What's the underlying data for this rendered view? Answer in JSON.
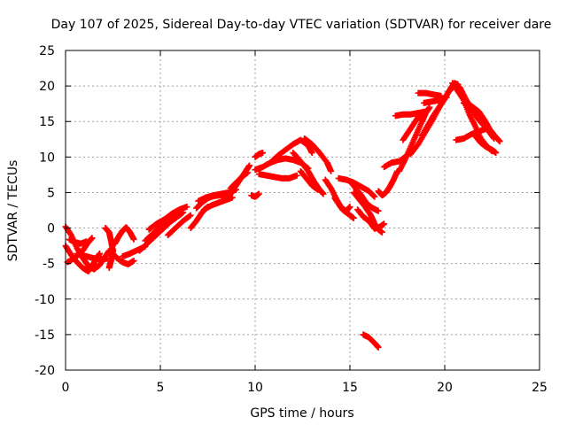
{
  "chart_data": {
    "type": "scatter",
    "title": "Day 107 of 2025, Sidereal Day-to-day VTEC variation (SDTVAR) for receiver dare",
    "xlabel": "GPS time / hours",
    "ylabel": "SDTVAR / TECUs",
    "xlim": [
      0,
      25
    ],
    "ylim": [
      -20,
      25
    ],
    "xticks": [
      0,
      5,
      10,
      15,
      20,
      25
    ],
    "yticks": [
      -20,
      -15,
      -10,
      -5,
      0,
      5,
      10,
      15,
      20,
      25
    ],
    "grid": true,
    "legend": "none",
    "marker": "+",
    "series": [
      {
        "name": "SDTVAR",
        "color": "#ff0000",
        "tracks": [
          [
            [
              0.0,
              0.2
            ],
            [
              0.3,
              -1.0
            ],
            [
              0.6,
              -2.8
            ],
            [
              0.9,
              -4.2
            ],
            [
              1.2,
              -5.3
            ],
            [
              1.5,
              -5.8
            ],
            [
              1.8,
              -5.2
            ],
            [
              2.1,
              -4.0
            ],
            [
              2.3,
              -3.2
            ]
          ],
          [
            [
              0.0,
              -2.5
            ],
            [
              0.3,
              -3.8
            ],
            [
              0.6,
              -4.8
            ],
            [
              0.9,
              -5.6
            ],
            [
              1.2,
              -6.1
            ],
            [
              1.4,
              -5.4
            ],
            [
              1.6,
              -4.4
            ],
            [
              1.8,
              -3.6
            ]
          ],
          [
            [
              0.1,
              -4.8
            ],
            [
              0.5,
              -4.2
            ],
            [
              0.9,
              -3.2
            ],
            [
              1.2,
              -2.0
            ],
            [
              1.4,
              -1.4
            ]
          ],
          [
            [
              0.2,
              -1.6
            ],
            [
              0.5,
              -2.0
            ],
            [
              0.8,
              -2.2
            ],
            [
              1.1,
              -1.9
            ]
          ],
          [
            [
              0.6,
              -3.6
            ],
            [
              1.0,
              -3.9
            ],
            [
              1.4,
              -4.2
            ],
            [
              1.8,
              -4.4
            ],
            [
              2.2,
              -4.3
            ]
          ],
          [
            [
              2.1,
              0.0
            ],
            [
              2.3,
              -0.6
            ],
            [
              2.4,
              -1.8
            ],
            [
              2.5,
              -3.2
            ],
            [
              2.4,
              -4.6
            ],
            [
              2.3,
              -5.6
            ]
          ],
          [
            [
              2.5,
              -3.6
            ],
            [
              2.7,
              -4.2
            ],
            [
              3.0,
              -4.8
            ],
            [
              3.3,
              -5.1
            ],
            [
              3.6,
              -4.6
            ]
          ],
          [
            [
              2.6,
              -2.2
            ],
            [
              2.8,
              -1.2
            ],
            [
              3.0,
              -0.4
            ],
            [
              3.2,
              0.1
            ],
            [
              3.4,
              -0.6
            ],
            [
              3.6,
              -1.6
            ]
          ],
          [
            [
              3.0,
              -4.0
            ],
            [
              3.4,
              -3.6
            ],
            [
              3.8,
              -3.1
            ],
            [
              4.2,
              -2.6
            ]
          ],
          [
            [
              3.9,
              -3.2
            ],
            [
              4.3,
              -2.2
            ],
            [
              4.7,
              -1.2
            ],
            [
              5.1,
              -0.2
            ],
            [
              5.5,
              0.8
            ],
            [
              5.9,
              1.6
            ],
            [
              6.2,
              2.2
            ]
          ],
          [
            [
              4.2,
              -1.8
            ],
            [
              4.6,
              -0.8
            ],
            [
              5.0,
              0.2
            ],
            [
              5.4,
              0.9
            ],
            [
              5.8,
              1.6
            ]
          ],
          [
            [
              4.4,
              -0.2
            ],
            [
              4.8,
              0.6
            ],
            [
              5.2,
              1.2
            ],
            [
              5.6,
              2.0
            ],
            [
              6.0,
              2.6
            ],
            [
              6.4,
              3.0
            ]
          ],
          [
            [
              5.4,
              -1.0
            ],
            [
              5.8,
              0.0
            ],
            [
              6.2,
              1.0
            ],
            [
              6.6,
              1.8
            ]
          ],
          [
            [
              6.6,
              0.0
            ],
            [
              6.9,
              1.0
            ],
            [
              7.2,
              2.2
            ],
            [
              7.5,
              3.0
            ]
          ],
          [
            [
              6.9,
              2.8
            ],
            [
              7.2,
              3.6
            ],
            [
              7.5,
              4.2
            ],
            [
              7.8,
              4.5
            ],
            [
              8.1,
              4.6
            ],
            [
              8.4,
              4.7
            ],
            [
              8.7,
              4.9
            ]
          ],
          [
            [
              7.0,
              3.8
            ],
            [
              7.4,
              4.3
            ],
            [
              7.8,
              4.6
            ],
            [
              8.2,
              4.8
            ],
            [
              8.6,
              5.0
            ],
            [
              9.0,
              5.4
            ]
          ],
          [
            [
              7.3,
              2.6
            ],
            [
              7.7,
              3.2
            ],
            [
              8.1,
              3.6
            ],
            [
              8.5,
              4.0
            ],
            [
              8.8,
              4.3
            ]
          ],
          [
            [
              8.6,
              4.4
            ],
            [
              8.9,
              5.6
            ],
            [
              9.2,
              6.8
            ],
            [
              9.5,
              8.0
            ],
            [
              9.7,
              8.8
            ]
          ],
          [
            [
              8.7,
              5.6
            ],
            [
              9.0,
              6.4
            ],
            [
              9.3,
              7.2
            ],
            [
              9.6,
              7.8
            ]
          ],
          [
            [
              9.8,
              4.6
            ],
            [
              10.0,
              4.4
            ],
            [
              10.2,
              4.8
            ]
          ],
          [
            [
              10.0,
              10.0
            ],
            [
              10.2,
              10.4
            ],
            [
              10.4,
              10.6
            ]
          ],
          [
            [
              10.0,
              8.2
            ],
            [
              10.4,
              8.6
            ],
            [
              10.8,
              9.2
            ],
            [
              11.2,
              10.2
            ],
            [
              11.6,
              11.0
            ],
            [
              12.0,
              11.8
            ],
            [
              12.4,
              12.4
            ],
            [
              12.8,
              11.6
            ],
            [
              13.0,
              10.6
            ]
          ],
          [
            [
              10.2,
              7.6
            ],
            [
              10.6,
              7.4
            ],
            [
              11.0,
              7.2
            ],
            [
              11.4,
              7.0
            ],
            [
              11.8,
              7.0
            ],
            [
              12.2,
              7.4
            ]
          ],
          [
            [
              10.8,
              9.2
            ],
            [
              11.2,
              9.6
            ],
            [
              11.6,
              9.8
            ],
            [
              12.0,
              9.6
            ],
            [
              12.4,
              9.2
            ],
            [
              12.8,
              8.4
            ]
          ],
          [
            [
              12.0,
              10.6
            ],
            [
              12.4,
              9.4
            ],
            [
              12.8,
              8.0
            ],
            [
              13.1,
              6.6
            ],
            [
              13.4,
              5.4
            ],
            [
              13.6,
              4.8
            ]
          ],
          [
            [
              12.6,
              12.6
            ],
            [
              13.0,
              11.8
            ],
            [
              13.4,
              10.6
            ],
            [
              13.8,
              9.2
            ],
            [
              14.0,
              8.0
            ]
          ],
          [
            [
              12.4,
              8.0
            ],
            [
              12.7,
              7.0
            ],
            [
              13.0,
              6.0
            ],
            [
              13.3,
              5.4
            ]
          ],
          [
            [
              13.7,
              6.8
            ],
            [
              14.0,
              5.6
            ],
            [
              14.3,
              4.0
            ],
            [
              14.6,
              2.6
            ],
            [
              14.9,
              2.0
            ],
            [
              15.2,
              1.4
            ]
          ],
          [
            [
              14.2,
              4.2
            ],
            [
              14.5,
              3.0
            ],
            [
              14.8,
              2.4
            ],
            [
              15.0,
              3.0
            ]
          ],
          [
            [
              14.4,
              7.0
            ],
            [
              14.8,
              6.8
            ],
            [
              15.2,
              6.4
            ],
            [
              15.6,
              5.8
            ],
            [
              16.0,
              5.2
            ],
            [
              16.3,
              4.4
            ]
          ],
          [
            [
              15.0,
              6.6
            ],
            [
              15.3,
              5.6
            ],
            [
              15.6,
              4.6
            ],
            [
              15.9,
              3.4
            ],
            [
              16.2,
              2.8
            ],
            [
              16.5,
              2.4
            ]
          ],
          [
            [
              15.2,
              5.0
            ],
            [
              15.5,
              4.0
            ],
            [
              15.8,
              3.0
            ],
            [
              16.1,
              1.8
            ],
            [
              16.3,
              0.6
            ],
            [
              16.5,
              -0.2
            ],
            [
              16.7,
              -0.6
            ]
          ],
          [
            [
              15.4,
              2.6
            ],
            [
              15.7,
              1.6
            ],
            [
              16.0,
              1.0
            ],
            [
              16.3,
              -0.1
            ],
            [
              16.6,
              0.2
            ],
            [
              16.8,
              0.6
            ]
          ],
          [
            [
              15.7,
              -15.0
            ],
            [
              16.0,
              -15.4
            ],
            [
              16.3,
              -16.2
            ],
            [
              16.5,
              -16.8
            ]
          ],
          [
            [
              16.5,
              5.2
            ],
            [
              16.7,
              4.6
            ],
            [
              16.9,
              5.0
            ],
            [
              17.1,
              5.8
            ],
            [
              17.3,
              6.8
            ],
            [
              17.5,
              8.0
            ]
          ],
          [
            [
              16.8,
              8.6
            ],
            [
              17.2,
              9.2
            ],
            [
              17.6,
              9.4
            ],
            [
              18.0,
              10.2
            ],
            [
              18.3,
              11.0
            ]
          ],
          [
            [
              17.6,
              8.0
            ],
            [
              17.9,
              9.6
            ],
            [
              18.2,
              11.4
            ],
            [
              18.5,
              13.2
            ],
            [
              18.8,
              15.0
            ],
            [
              19.0,
              16.2
            ],
            [
              19.2,
              17.0
            ]
          ],
          [
            [
              17.8,
              12.4
            ],
            [
              18.1,
              13.6
            ],
            [
              18.4,
              14.8
            ],
            [
              18.7,
              16.0
            ]
          ],
          [
            [
              17.4,
              15.8
            ],
            [
              17.8,
              16.0
            ],
            [
              18.2,
              16.0
            ],
            [
              18.6,
              16.2
            ],
            [
              19.0,
              16.4
            ]
          ],
          [
            [
              18.2,
              10.4
            ],
            [
              18.6,
              11.8
            ],
            [
              19.0,
              13.6
            ],
            [
              19.4,
              15.4
            ],
            [
              19.8,
              17.4
            ],
            [
              20.2,
              19.2
            ],
            [
              20.5,
              20.0
            ],
            [
              20.8,
              19.6
            ]
          ],
          [
            [
              18.8,
              13.0
            ],
            [
              19.1,
              14.4
            ],
            [
              19.4,
              15.8
            ],
            [
              19.7,
              17.0
            ],
            [
              20.0,
              18.2
            ],
            [
              20.3,
              19.6
            ],
            [
              20.5,
              20.4
            ],
            [
              20.7,
              20.2
            ]
          ],
          [
            [
              18.6,
              19.0
            ],
            [
              19.0,
              19.0
            ],
            [
              19.4,
              18.8
            ],
            [
              19.8,
              18.6
            ]
          ],
          [
            [
              18.9,
              17.6
            ],
            [
              19.3,
              17.8
            ],
            [
              19.7,
              18.0
            ],
            [
              20.1,
              18.4
            ]
          ],
          [
            [
              20.4,
              20.4
            ],
            [
              20.8,
              19.8
            ],
            [
              21.1,
              18.2
            ],
            [
              21.4,
              16.8
            ],
            [
              21.8,
              15.2
            ],
            [
              22.2,
              14.0
            ],
            [
              22.6,
              12.6
            ]
          ],
          [
            [
              20.6,
              19.6
            ],
            [
              21.0,
              18.0
            ],
            [
              21.3,
              16.0
            ],
            [
              21.6,
              14.4
            ],
            [
              21.9,
              12.6
            ],
            [
              22.2,
              11.6
            ],
            [
              22.5,
              10.8
            ]
          ],
          [
            [
              21.0,
              17.6
            ],
            [
              21.4,
              17.2
            ],
            [
              21.8,
              16.4
            ],
            [
              22.1,
              15.2
            ],
            [
              22.4,
              13.8
            ],
            [
              22.7,
              12.8
            ],
            [
              22.9,
              12.2
            ]
          ],
          [
            [
              20.6,
              12.4
            ],
            [
              21.0,
              12.6
            ],
            [
              21.4,
              13.2
            ],
            [
              21.8,
              13.6
            ],
            [
              22.2,
              14.0
            ]
          ],
          [
            [
              21.6,
              13.0
            ],
            [
              21.9,
              12.0
            ],
            [
              22.2,
              11.4
            ],
            [
              22.5,
              11.0
            ],
            [
              22.7,
              10.6
            ]
          ]
        ]
      }
    ]
  }
}
